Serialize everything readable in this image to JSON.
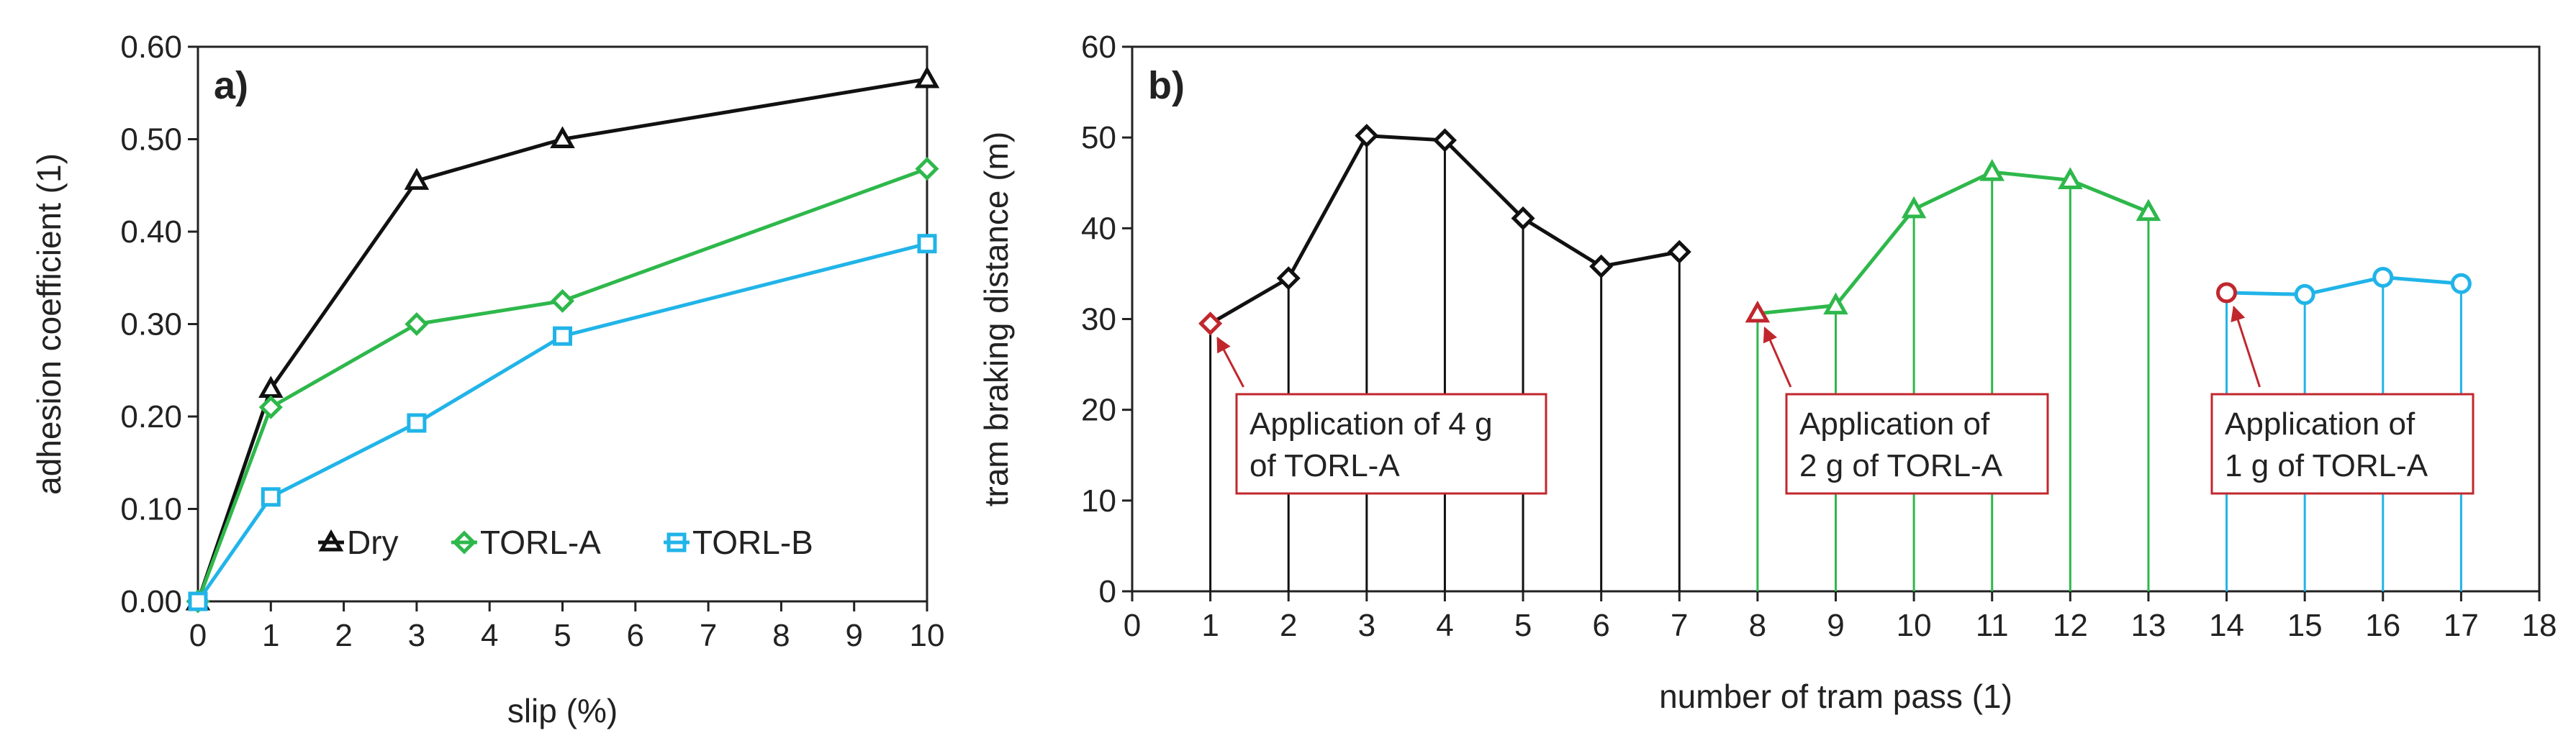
{
  "chart_data": [
    {
      "type": "line",
      "panel": "a)",
      "title": "",
      "xlabel": "slip (%)",
      "ylabel": "adhesion coefficient (1)",
      "x_scale": "categorical",
      "x": [
        0,
        1,
        3,
        5,
        10
      ],
      "x_ticks": [
        "0",
        "1",
        "2",
        "3",
        "4",
        "5",
        "6",
        "7",
        "8",
        "9",
        "10"
      ],
      "y_ticks": [
        "0.00",
        "0.10",
        "0.20",
        "0.30",
        "0.40",
        "0.50",
        "0.60"
      ],
      "ylim": [
        0,
        0.6
      ],
      "grid": false,
      "legend_position": "bottom",
      "series": [
        {
          "name": "Dry",
          "marker": "triangle",
          "color": "#111111",
          "values": [
            0,
            0.23,
            0.455,
            0.5,
            0.565
          ]
        },
        {
          "name": "TORL-A",
          "marker": "diamond",
          "color": "#2eb84b",
          "values": [
            0,
            0.21,
            0.3,
            0.325,
            0.468
          ]
        },
        {
          "name": "TORL-B",
          "marker": "square",
          "color": "#21b4e8",
          "values": [
            0,
            0.113,
            0.193,
            0.287,
            0.387
          ]
        }
      ]
    },
    {
      "type": "line",
      "panel": "b)",
      "title": "",
      "xlabel": "number of tram pass (1)",
      "ylabel": "tram braking distance (m)",
      "x_ticks": [
        "0",
        "1",
        "2",
        "3",
        "4",
        "5",
        "6",
        "7",
        "8",
        "9",
        "10",
        "11",
        "12",
        "13",
        "14",
        "15",
        "16",
        "17",
        "18"
      ],
      "y_ticks": [
        "0",
        "10",
        "20",
        "30",
        "40",
        "50",
        "60"
      ],
      "xlim": [
        0,
        18
      ],
      "ylim": [
        0,
        60
      ],
      "grid": false,
      "drop_lines": true,
      "series": [
        {
          "name": "Dry",
          "marker": "diamond",
          "color": "#111111",
          "highlight_color": "#c0272d",
          "x": [
            1,
            2,
            3,
            4,
            5,
            6,
            7
          ],
          "values": [
            29.5,
            34.5,
            50.2,
            49.7,
            41.1,
            35.8,
            37.4
          ]
        },
        {
          "name": "TORL-A 2 g",
          "marker": "triangle",
          "color": "#2eb84b",
          "highlight_color": "#c0272d",
          "x": [
            8,
            9,
            10,
            11,
            12,
            13
          ],
          "values": [
            30.6,
            31.5,
            42.1,
            46.2,
            45.3,
            41.8
          ]
        },
        {
          "name": "TORL-A 1 g",
          "marker": "circle",
          "color": "#21b4e8",
          "highlight_color": "#c0272d",
          "x": [
            14,
            15,
            16,
            17
          ],
          "values": [
            32.9,
            32.7,
            34.6,
            33.9
          ]
        }
      ],
      "annotations": [
        {
          "lines": [
            "Application of 4 g",
            "of TORL-A"
          ],
          "target_x": 1,
          "target_y": 29.5
        },
        {
          "lines": [
            "Application of",
            "2 g of TORL-A"
          ],
          "target_x": 8,
          "target_y": 30.6
        },
        {
          "lines": [
            "Application of",
            "1 g of TORL-A"
          ],
          "target_x": 14,
          "target_y": 32.9
        }
      ]
    }
  ]
}
